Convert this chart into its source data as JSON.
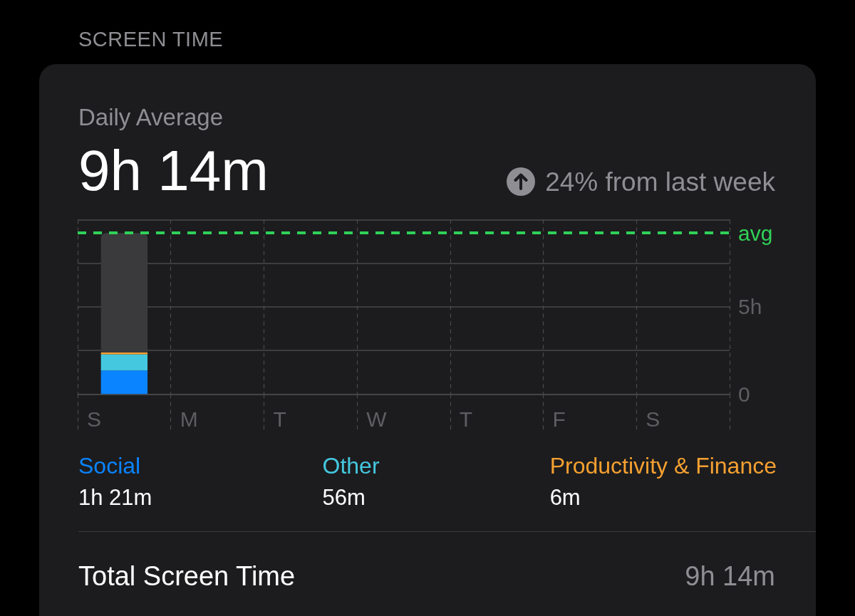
{
  "chart_data": {
    "type": "bar",
    "title": "SCREEN TIME",
    "subtitle": "Daily Average",
    "categories": [
      "S",
      "M",
      "T",
      "W",
      "T",
      "F",
      "S"
    ],
    "series": [
      {
        "name": "Social",
        "color": "#0a84ff",
        "values": [
          1.35,
          null,
          null,
          null,
          null,
          null,
          null
        ]
      },
      {
        "name": "Other",
        "color": "#44c8e0",
        "values": [
          0.93,
          null,
          null,
          null,
          null,
          null,
          null
        ]
      },
      {
        "name": "Productivity & Finance",
        "color": "#f5a030",
        "values": [
          0.1,
          null,
          null,
          null,
          null,
          null,
          null
        ]
      },
      {
        "color": "#3a3a3c",
        "values": [
          6.85,
          null,
          null,
          null,
          null,
          null,
          null
        ]
      }
    ],
    "stacked": true,
    "ylim": [
      0,
      10
    ],
    "yticks": [
      0,
      {
        "value": 2.5,
        "label": null
      },
      {
        "value": 5,
        "label": "5h"
      },
      {
        "value": 7.5,
        "label": null
      },
      {
        "value": 10,
        "label": null
      }
    ],
    "ref_lines": [
      {
        "axis": "y",
        "value": 9.23,
        "label": "avg",
        "color": "#30d158",
        "line_style": "dashed"
      }
    ],
    "grid": true,
    "legend": "bottom",
    "annotations": [
      "9h 14m",
      "24% from last week",
      "1h 21m",
      "56m",
      "6m",
      "Total Screen Time",
      "9h 14m"
    ]
  }
}
